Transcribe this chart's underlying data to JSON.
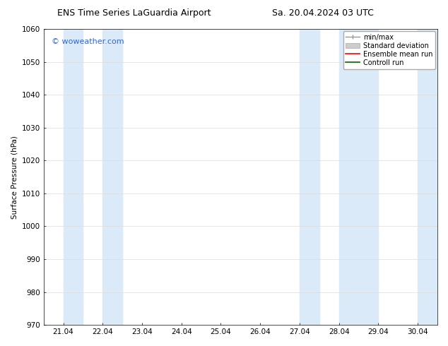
{
  "title": "ENS Time Series LaGuardia Airport",
  "title2": "Sa. 20.04.2024 03 UTC",
  "ylabel": "Surface Pressure (hPa)",
  "ylim": [
    970,
    1060
  ],
  "yticks": [
    970,
    980,
    990,
    1000,
    1010,
    1020,
    1030,
    1040,
    1050,
    1060
  ],
  "xtick_labels": [
    "21.04",
    "22.04",
    "23.04",
    "24.04",
    "25.04",
    "26.04",
    "27.04",
    "28.04",
    "29.04",
    "30.04"
  ],
  "shaded_bands": [
    {
      "x_start": 0.0,
      "x_end": 0.5,
      "color": "#daeaf8"
    },
    {
      "x_start": 1.0,
      "x_end": 1.5,
      "color": "#daeaf8"
    },
    {
      "x_start": 6.0,
      "x_end": 6.5,
      "color": "#daeaf8"
    },
    {
      "x_start": 7.0,
      "x_end": 7.5,
      "color": "#daeaf8"
    },
    {
      "x_start": 7.5,
      "x_end": 8.0,
      "color": "#daeaf8"
    },
    {
      "x_start": 9.0,
      "x_end": 9.5,
      "color": "#daeaf8"
    }
  ],
  "watermark": "© woweather.com",
  "watermark_color": "#3366cc",
  "bg_color": "#ffffff",
  "legend_items": [
    {
      "label": "min/max",
      "color": "#999999"
    },
    {
      "label": "Standard deviation",
      "color": "#cccccc"
    },
    {
      "label": "Ensemble mean run",
      "color": "#ff0000"
    },
    {
      "label": "Controll run",
      "color": "#006600"
    }
  ],
  "font_size_title": 9,
  "font_size_axis": 7.5,
  "font_size_legend": 7,
  "font_size_watermark": 8,
  "grid_color": "#dddddd",
  "tick_color": "#000000",
  "xlim_left": -0.5,
  "xlim_right": 9.5
}
